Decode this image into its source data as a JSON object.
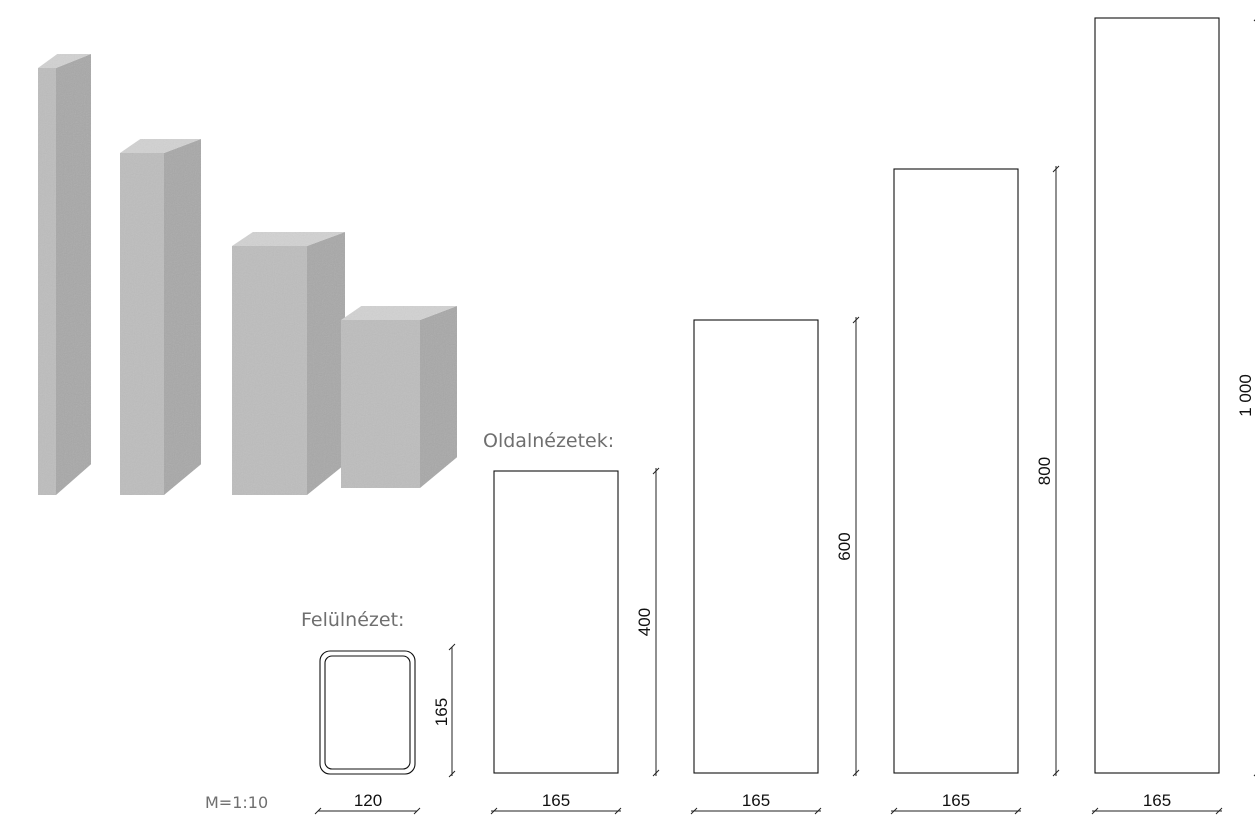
{
  "labels": {
    "side_views": "Oldalnézetek:",
    "top_view": "Felülnézet:",
    "scale": "M=1:10"
  },
  "top_view": {
    "width_label": "120",
    "depth_label": "165"
  },
  "side_views": [
    {
      "height": 400,
      "height_label": "400",
      "width_label": "165"
    },
    {
      "height": 600,
      "height_label": "600",
      "width_label": "165"
    },
    {
      "height": 800,
      "height_label": "800",
      "width_label": "165"
    },
    {
      "height": 1000,
      "height_label": "1 000",
      "width_label": "165"
    }
  ],
  "colors": {
    "stone_light": "#d2d2d2",
    "stone_mid": "#bdbdbd",
    "stone_dark": "#a8a8a8",
    "label_gray": "#6f6f6f",
    "line": "#111111"
  }
}
